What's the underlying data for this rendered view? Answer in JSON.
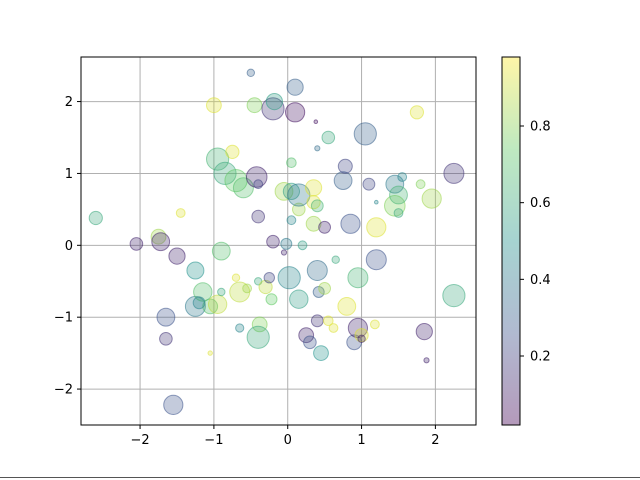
{
  "chart_data": {
    "type": "scatter",
    "title": "",
    "xlabel": "",
    "ylabel": "",
    "xlim": [
      -2.8,
      2.55
    ],
    "ylim": [
      -2.5,
      2.62
    ],
    "xticks": [
      -2,
      -1,
      0,
      1,
      2
    ],
    "xtick_labels": [
      "−2",
      "−1",
      "0",
      "1",
      "2"
    ],
    "yticks": [
      -2,
      -1,
      0,
      1,
      2
    ],
    "ytick_labels": [
      "−2",
      "−1",
      "0",
      "1",
      "2"
    ],
    "grid": true,
    "alpha": 0.3,
    "colormap": "viridis",
    "colorbar": {
      "range": [
        0.02,
        0.98
      ],
      "ticks": [
        0.2,
        0.4,
        0.6,
        0.8
      ],
      "tick_labels": [
        "0.2",
        "0.4",
        "0.6",
        "0.8"
      ]
    },
    "points": [
      {
        "x": -2.6,
        "y": 0.38,
        "size": 0.18,
        "c": 0.6
      },
      {
        "x": -2.05,
        "y": 0.02,
        "size": 0.17,
        "c": 0.1
      },
      {
        "x": -1.75,
        "y": 0.12,
        "size": 0.2,
        "c": 0.85
      },
      {
        "x": -1.72,
        "y": 0.05,
        "size": 0.24,
        "c": 0.1
      },
      {
        "x": -1.5,
        "y": -0.15,
        "size": 0.22,
        "c": 0.1
      },
      {
        "x": -1.45,
        "y": 0.45,
        "size": 0.12,
        "c": 0.95
      },
      {
        "x": -1.65,
        "y": -1.0,
        "size": 0.24,
        "c": 0.25
      },
      {
        "x": -1.65,
        "y": -1.3,
        "size": 0.17,
        "c": 0.15
      },
      {
        "x": -1.55,
        "y": -2.22,
        "size": 0.26,
        "c": 0.25
      },
      {
        "x": -1.25,
        "y": -0.35,
        "size": 0.23,
        "c": 0.5
      },
      {
        "x": -1.25,
        "y": -0.85,
        "size": 0.27,
        "c": 0.4
      },
      {
        "x": -1.15,
        "y": -0.65,
        "size": 0.25,
        "c": 0.7
      },
      {
        "x": -1.05,
        "y": -0.85,
        "size": 0.2,
        "c": 0.7
      },
      {
        "x": -1.2,
        "y": -0.8,
        "size": 0.16,
        "c": 0.45
      },
      {
        "x": -1.05,
        "y": -1.5,
        "size": 0.06,
        "c": 0.95
      },
      {
        "x": -0.95,
        "y": -0.82,
        "size": 0.25,
        "c": 0.9
      },
      {
        "x": -0.9,
        "y": -0.65,
        "size": 0.1,
        "c": 0.6
      },
      {
        "x": -0.9,
        "y": -0.08,
        "size": 0.24,
        "c": 0.7
      },
      {
        "x": -1.0,
        "y": 1.95,
        "size": 0.2,
        "c": 0.95
      },
      {
        "x": -0.95,
        "y": 1.2,
        "size": 0.3,
        "c": 0.65
      },
      {
        "x": -0.85,
        "y": 1.0,
        "size": 0.3,
        "c": 0.6
      },
      {
        "x": -0.75,
        "y": 1.3,
        "size": 0.18,
        "c": 0.95
      },
      {
        "x": -0.7,
        "y": 0.9,
        "size": 0.3,
        "c": 0.75
      },
      {
        "x": -0.65,
        "y": -0.65,
        "size": 0.27,
        "c": 0.9
      },
      {
        "x": -0.7,
        "y": -0.45,
        "size": 0.1,
        "c": 0.95
      },
      {
        "x": -0.65,
        "y": -1.15,
        "size": 0.11,
        "c": 0.45
      },
      {
        "x": -0.6,
        "y": 0.8,
        "size": 0.27,
        "c": 0.7
      },
      {
        "x": -0.55,
        "y": -0.6,
        "size": 0.12,
        "c": 0.85
      },
      {
        "x": -0.5,
        "y": 2.4,
        "size": 0.1,
        "c": 0.3
      },
      {
        "x": -0.45,
        "y": 1.95,
        "size": 0.2,
        "c": 0.8
      },
      {
        "x": -0.42,
        "y": 0.95,
        "size": 0.28,
        "c": 0.1
      },
      {
        "x": -0.4,
        "y": 0.85,
        "size": 0.12,
        "c": 0.2
      },
      {
        "x": -0.4,
        "y": 0.4,
        "size": 0.17,
        "c": 0.15
      },
      {
        "x": -0.4,
        "y": -0.5,
        "size": 0.1,
        "c": 0.6
      },
      {
        "x": -0.38,
        "y": -1.1,
        "size": 0.2,
        "c": 0.8
      },
      {
        "x": -0.4,
        "y": -1.28,
        "size": 0.3,
        "c": 0.6
      },
      {
        "x": -0.3,
        "y": -0.58,
        "size": 0.18,
        "c": 0.9
      },
      {
        "x": -0.25,
        "y": -0.45,
        "size": 0.14,
        "c": 0.2
      },
      {
        "x": -0.2,
        "y": 1.9,
        "size": 0.3,
        "c": 0.15
      },
      {
        "x": -0.18,
        "y": 2.0,
        "size": 0.22,
        "c": 0.55
      },
      {
        "x": -0.2,
        "y": 0.05,
        "size": 0.17,
        "c": 0.1
      },
      {
        "x": -0.22,
        "y": -0.75,
        "size": 0.15,
        "c": 0.75
      },
      {
        "x": -0.05,
        "y": 0.75,
        "size": 0.24,
        "c": 0.85
      },
      {
        "x": -0.02,
        "y": 0.02,
        "size": 0.15,
        "c": 0.4
      },
      {
        "x": -0.05,
        "y": -0.1,
        "size": 0.07,
        "c": 0.1
      },
      {
        "x": 0.02,
        "y": -0.45,
        "size": 0.3,
        "c": 0.45
      },
      {
        "x": 0.05,
        "y": 1.15,
        "size": 0.13,
        "c": 0.7
      },
      {
        "x": 0.05,
        "y": 0.35,
        "size": 0.12,
        "c": 0.45
      },
      {
        "x": 0.05,
        "y": 0.75,
        "size": 0.22,
        "c": 0.55
      },
      {
        "x": 0.1,
        "y": 2.2,
        "size": 0.22,
        "c": 0.3
      },
      {
        "x": 0.1,
        "y": 1.85,
        "size": 0.26,
        "c": 0.05
      },
      {
        "x": 0.15,
        "y": 0.5,
        "size": 0.17,
        "c": 0.85
      },
      {
        "x": 0.15,
        "y": 0.7,
        "size": 0.3,
        "c": 0.4
      },
      {
        "x": 0.15,
        "y": -0.75,
        "size": 0.25,
        "c": 0.55
      },
      {
        "x": 0.2,
        "y": 0.0,
        "size": 0.12,
        "c": 0.55
      },
      {
        "x": 0.25,
        "y": -1.25,
        "size": 0.2,
        "c": 0.1
      },
      {
        "x": 0.3,
        "y": -1.35,
        "size": 0.17,
        "c": 0.25
      },
      {
        "x": 0.35,
        "y": 0.3,
        "size": 0.2,
        "c": 0.85
      },
      {
        "x": 0.35,
        "y": 0.6,
        "size": 0.18,
        "c": 0.95
      },
      {
        "x": 0.35,
        "y": 0.8,
        "size": 0.22,
        "c": 0.95
      },
      {
        "x": 0.38,
        "y": 1.72,
        "size": 0.05,
        "c": 0.05
      },
      {
        "x": 0.4,
        "y": 1.35,
        "size": 0.07,
        "c": 0.35
      },
      {
        "x": 0.4,
        "y": 0.55,
        "size": 0.16,
        "c": 0.65
      },
      {
        "x": 0.4,
        "y": -0.35,
        "size": 0.27,
        "c": 0.35
      },
      {
        "x": 0.42,
        "y": -0.65,
        "size": 0.15,
        "c": 0.3
      },
      {
        "x": 0.4,
        "y": -1.05,
        "size": 0.16,
        "c": 0.15
      },
      {
        "x": 0.45,
        "y": -1.5,
        "size": 0.2,
        "c": 0.5
      },
      {
        "x": 0.55,
        "y": 1.5,
        "size": 0.17,
        "c": 0.6
      },
      {
        "x": 0.5,
        "y": 0.25,
        "size": 0.16,
        "c": 0.1
      },
      {
        "x": 0.5,
        "y": -0.6,
        "size": 0.16,
        "c": 0.85
      },
      {
        "x": 0.55,
        "y": -1.05,
        "size": 0.13,
        "c": 0.95
      },
      {
        "x": 0.62,
        "y": -1.15,
        "size": 0.12,
        "c": 0.95
      },
      {
        "x": 0.65,
        "y": -0.2,
        "size": 0.1,
        "c": 0.6
      },
      {
        "x": 0.75,
        "y": 0.9,
        "size": 0.24,
        "c": 0.3
      },
      {
        "x": 0.78,
        "y": 1.1,
        "size": 0.19,
        "c": 0.2
      },
      {
        "x": 0.8,
        "y": -0.85,
        "size": 0.24,
        "c": 0.95
      },
      {
        "x": 0.85,
        "y": 0.3,
        "size": 0.26,
        "c": 0.25
      },
      {
        "x": 0.9,
        "y": -1.35,
        "size": 0.2,
        "c": 0.25
      },
      {
        "x": 0.95,
        "y": -0.45,
        "size": 0.27,
        "c": 0.65
      },
      {
        "x": 0.95,
        "y": -1.15,
        "size": 0.26,
        "c": 0.1
      },
      {
        "x": 1.0,
        "y": -1.25,
        "size": 0.18,
        "c": 0.95
      },
      {
        "x": 1.0,
        "y": -1.3,
        "size": 0.1,
        "c": 0.1
      },
      {
        "x": 1.05,
        "y": 1.55,
        "size": 0.3,
        "c": 0.3
      },
      {
        "x": 1.1,
        "y": 0.85,
        "size": 0.16,
        "c": 0.2
      },
      {
        "x": 1.18,
        "y": -1.1,
        "size": 0.12,
        "c": 0.95
      },
      {
        "x": 1.2,
        "y": 0.6,
        "size": 0.05,
        "c": 0.45
      },
      {
        "x": 1.2,
        "y": 0.25,
        "size": 0.26,
        "c": 0.95
      },
      {
        "x": 1.2,
        "y": -0.2,
        "size": 0.27,
        "c": 0.25
      },
      {
        "x": 1.45,
        "y": 0.85,
        "size": 0.24,
        "c": 0.4
      },
      {
        "x": 1.45,
        "y": 0.55,
        "size": 0.28,
        "c": 0.8
      },
      {
        "x": 1.5,
        "y": 0.7,
        "size": 0.24,
        "c": 0.65
      },
      {
        "x": 1.5,
        "y": 0.45,
        "size": 0.12,
        "c": 0.6
      },
      {
        "x": 1.55,
        "y": 0.95,
        "size": 0.12,
        "c": 0.45
      },
      {
        "x": 1.75,
        "y": 1.85,
        "size": 0.18,
        "c": 0.95
      },
      {
        "x": 1.8,
        "y": 0.85,
        "size": 0.12,
        "c": 0.8
      },
      {
        "x": 1.85,
        "y": -1.2,
        "size": 0.22,
        "c": 0.1
      },
      {
        "x": 1.88,
        "y": -1.6,
        "size": 0.07,
        "c": 0.1
      },
      {
        "x": 1.95,
        "y": 0.65,
        "size": 0.26,
        "c": 0.85
      },
      {
        "x": 2.25,
        "y": 1.0,
        "size": 0.27,
        "c": 0.15
      },
      {
        "x": 2.25,
        "y": -0.7,
        "size": 0.3,
        "c": 0.6
      }
    ]
  },
  "colors": {
    "grid": "#b0b0b0",
    "axes": "#000000",
    "viridis_stops": [
      "#440154",
      "#3b528b",
      "#21918c",
      "#5ec962",
      "#fde725"
    ]
  }
}
